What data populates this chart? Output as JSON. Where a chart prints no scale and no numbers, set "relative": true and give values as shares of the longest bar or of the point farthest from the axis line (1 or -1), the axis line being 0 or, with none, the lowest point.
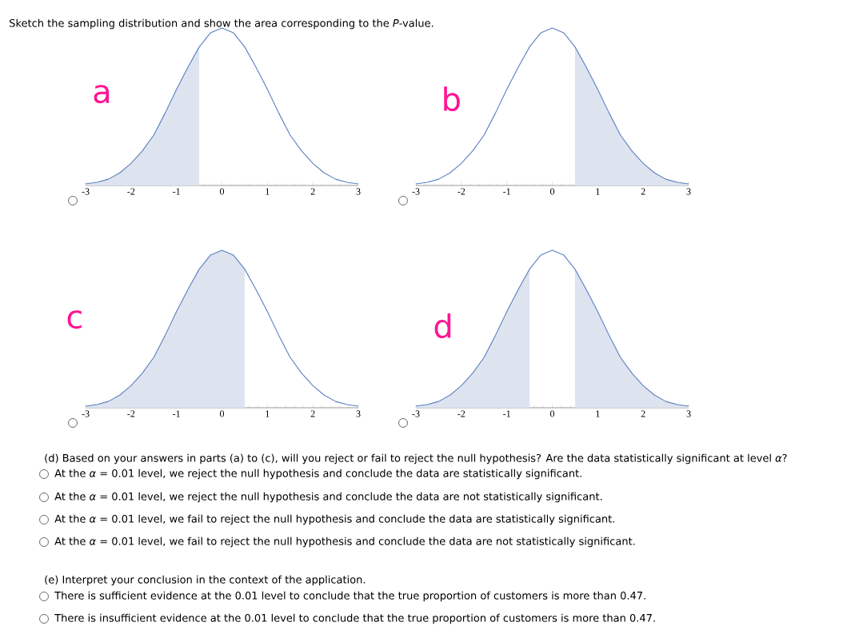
{
  "chart_data": [
    {
      "type": "other",
      "title": "Sketch the sampling distribution and show the area corresponding to the *P*-value."
    },
    {
      "type": "line",
      "relative": true,
      "annotations": [
        "a"
      ],
      "xlim": [
        -3,
        3
      ],
      "xticks": [
        -3,
        -2,
        -1,
        0,
        1,
        2,
        3
      ],
      "x": [
        -3,
        -2.75,
        -2.5,
        -2.25,
        -2,
        -1.75,
        -1.5,
        -1.25,
        -1,
        -0.75,
        -0.5,
        -0.25,
        0,
        0.25,
        0.5,
        0.75,
        1,
        1.25,
        1.5,
        1.75,
        2,
        2.25,
        2.5,
        2.75,
        3
      ],
      "series": [
        {
          "type": "area",
          "color": "#dde4ef",
          "x": [
            -3,
            -2.75,
            -2.5,
            -2.25,
            -2,
            -1.75,
            -1.5,
            -1.25,
            -1,
            -0.75,
            -0.5
          ],
          "values": [
            0.01,
            0.02,
            0.04,
            0.08,
            0.14,
            0.22,
            0.32,
            0.46,
            0.61,
            0.75,
            0.88
          ]
        },
        {
          "color": "#5b7fbf",
          "values": [
            0.01,
            0.02,
            0.04,
            0.08,
            0.14,
            0.22,
            0.32,
            0.46,
            0.61,
            0.75,
            0.88,
            0.97,
            1,
            0.97,
            0.88,
            0.75,
            0.61,
            0.46,
            0.32,
            0.22,
            0.14,
            0.08,
            0.04,
            0.02,
            0.01
          ]
        }
      ]
    },
    {
      "type": "line",
      "relative": true,
      "annotations": [
        "b"
      ],
      "xlim": [
        -3,
        3
      ],
      "xticks": [
        -3,
        -2,
        -1,
        0,
        1,
        2,
        3
      ],
      "x": [
        -3,
        -2.75,
        -2.5,
        -2.25,
        -2,
        -1.75,
        -1.5,
        -1.25,
        -1,
        -0.75,
        -0.5,
        -0.25,
        0,
        0.25,
        0.5,
        0.75,
        1,
        1.25,
        1.5,
        1.75,
        2,
        2.25,
        2.5,
        2.75,
        3
      ],
      "series": [
        {
          "type": "area",
          "color": "#dde4ef",
          "x": [
            0.5,
            0.75,
            1,
            1.25,
            1.5,
            1.75,
            2,
            2.25,
            2.5,
            2.75,
            3
          ],
          "values": [
            0.88,
            0.75,
            0.61,
            0.46,
            0.32,
            0.22,
            0.14,
            0.08,
            0.04,
            0.02,
            0.01
          ]
        },
        {
          "color": "#5b7fbf",
          "values": [
            0.01,
            0.02,
            0.04,
            0.08,
            0.14,
            0.22,
            0.32,
            0.46,
            0.61,
            0.75,
            0.88,
            0.97,
            1,
            0.97,
            0.88,
            0.75,
            0.61,
            0.46,
            0.32,
            0.22,
            0.14,
            0.08,
            0.04,
            0.02,
            0.01
          ]
        }
      ]
    },
    {
      "type": "line",
      "relative": true,
      "annotations": [
        "c"
      ],
      "xlim": [
        -3,
        3
      ],
      "xticks": [
        -3,
        -2,
        -1,
        0,
        1,
        2,
        3
      ],
      "x": [
        -3,
        -2.75,
        -2.5,
        -2.25,
        -2,
        -1.75,
        -1.5,
        -1.25,
        -1,
        -0.75,
        -0.5,
        -0.25,
        0,
        0.25,
        0.5,
        0.75,
        1,
        1.25,
        1.5,
        1.75,
        2,
        2.25,
        2.5,
        2.75,
        3
      ],
      "series": [
        {
          "type": "area",
          "color": "#dde4ef",
          "x": [
            -3,
            -2.75,
            -2.5,
            -2.25,
            -2,
            -1.75,
            -1.5,
            -1.25,
            -1,
            -0.75,
            -0.5,
            -0.25,
            0,
            0.25,
            0.5
          ],
          "values": [
            0.01,
            0.02,
            0.04,
            0.08,
            0.14,
            0.22,
            0.32,
            0.46,
            0.61,
            0.75,
            0.88,
            0.97,
            1,
            0.97,
            0.88
          ]
        },
        {
          "color": "#5b7fbf",
          "values": [
            0.01,
            0.02,
            0.04,
            0.08,
            0.14,
            0.22,
            0.32,
            0.46,
            0.61,
            0.75,
            0.88,
            0.97,
            1,
            0.97,
            0.88,
            0.75,
            0.61,
            0.46,
            0.32,
            0.22,
            0.14,
            0.08,
            0.04,
            0.02,
            0.01
          ]
        }
      ]
    },
    {
      "type": "line",
      "relative": true,
      "annotations": [
        "d"
      ],
      "xlim": [
        -3,
        3
      ],
      "xticks": [
        -3,
        -2,
        -1,
        0,
        1,
        2,
        3
      ],
      "x": [
        -3,
        -2.75,
        -2.5,
        -2.25,
        -2,
        -1.75,
        -1.5,
        -1.25,
        -1,
        -0.75,
        -0.5,
        -0.25,
        0,
        0.25,
        0.5,
        0.75,
        1,
        1.25,
        1.5,
        1.75,
        2,
        2.25,
        2.5,
        2.75,
        3
      ],
      "series": [
        {
          "type": "area",
          "color": "#dde4ef",
          "x": [
            -3,
            -2.75,
            -2.5,
            -2.25,
            -2,
            -1.75,
            -1.5,
            -1.25,
            -1,
            -0.75,
            -0.5
          ],
          "values": [
            0.01,
            0.02,
            0.04,
            0.08,
            0.14,
            0.22,
            0.32,
            0.46,
            0.61,
            0.75,
            0.88
          ]
        },
        {
          "type": "area",
          "color": "#dde4ef",
          "x": [
            0.5,
            0.75,
            1,
            1.25,
            1.5,
            1.75,
            2,
            2.25,
            2.5,
            2.75,
            3
          ],
          "values": [
            0.88,
            0.75,
            0.61,
            0.46,
            0.32,
            0.22,
            0.14,
            0.08,
            0.04,
            0.02,
            0.01
          ]
        },
        {
          "color": "#5b7fbf",
          "values": [
            0.01,
            0.02,
            0.04,
            0.08,
            0.14,
            0.22,
            0.32,
            0.46,
            0.61,
            0.75,
            0.88,
            0.97,
            1,
            0.97,
            0.88,
            0.75,
            0.61,
            0.46,
            0.32,
            0.22,
            0.14,
            0.08,
            0.04,
            0.02,
            0.01
          ]
        }
      ]
    },
    {
      "type": "other",
      "annotations": [
        "(d) Based on your answers in parts (a) to (c), will you reject or fail to reject the null hypothesis? Are the data statistically significant at level *α*?",
        "At the *α* = 0.01 level, we reject the null hypothesis and conclude the data are statistically significant.",
        "At the *α* = 0.01 level, we reject the null hypothesis and conclude the data are not statistically significant.",
        "At the *α* = 0.01 level, we fail to reject the null hypothesis and conclude the data are statistically significant.",
        "At the *α* = 0.01 level, we fail to reject the null hypothesis and conclude the data are not statistically significant.",
        "(e) Interpret your conclusion in the context of the application.",
        "There is sufficient evidence at the 0.01 level to conclude that the true proportion of customers is more than 0.47.",
        "There is insufficient evidence at the 0.01 level to conclude that the true proportion of customers is more than 0.47."
      ]
    }
  ]
}
